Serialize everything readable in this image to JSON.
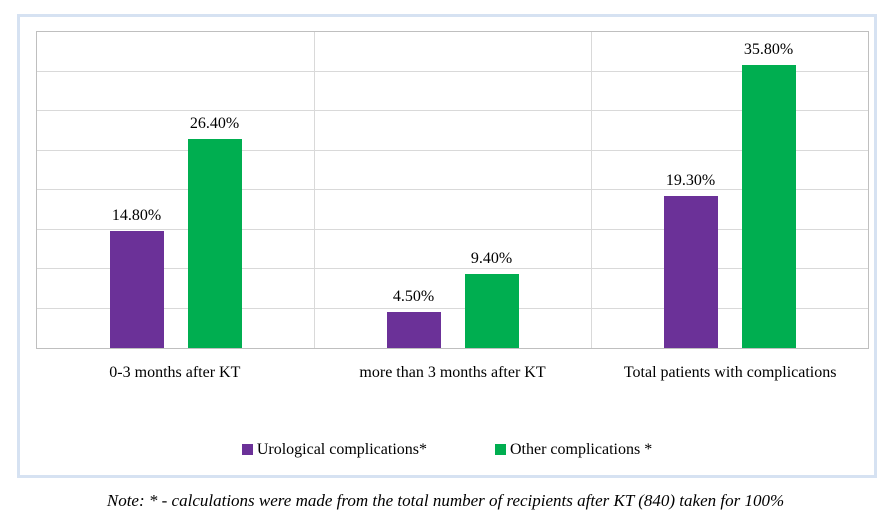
{
  "chart_data": {
    "type": "bar",
    "title": "",
    "xlabel": "",
    "ylabel": "",
    "categories": [
      "0-3 months after KT",
      "more than 3 months after KT",
      "Total patients with complications"
    ],
    "series": [
      {
        "name": "Urological complications*",
        "color": "#6B3198",
        "values": [
          14.8,
          4.5,
          19.3
        ],
        "data_labels": [
          "14.80%",
          "4.50%",
          "19.30%"
        ]
      },
      {
        "name": "Other complications *",
        "color": "#00AE50",
        "values": [
          26.4,
          9.4,
          35.8
        ],
        "data_labels": [
          "26.40%",
          "9.40%",
          "35.80%"
        ]
      }
    ],
    "ylim": [
      0,
      40
    ],
    "gridline_step": 5,
    "grid": true,
    "y_axis_tick_labels_visible": false,
    "legend_position": "bottom",
    "data_labels_visible": true
  },
  "note": {
    "text": "Note: * - calculations were made from the total number of recipients after KT (840) taken for 100%"
  },
  "colors": {
    "frame_border": "#D6E2F2",
    "plot_border": "#BFBFBF",
    "gridline": "#D9D9D9"
  }
}
